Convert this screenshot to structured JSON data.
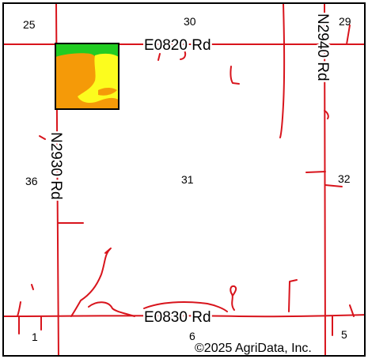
{
  "map": {
    "roads": {
      "e0820": "E0820 Rd",
      "e0830": "E0830 Rd",
      "n2930": "N2930 Rd",
      "n2940": "N2940 Rd"
    },
    "sections": {
      "s25": "25",
      "s30": "30",
      "s29": "29",
      "s36": "36",
      "s31": "31",
      "s32": "32",
      "s1": "1",
      "s6": "6",
      "s5": "5"
    },
    "copyright": "©2025 AgriData, Inc."
  },
  "colors": {
    "road": "#d8141c",
    "field_green": "#22cc22",
    "field_orange": "#f59a08",
    "field_yellow": "#fcfc1e",
    "field_outline": "#000000"
  }
}
